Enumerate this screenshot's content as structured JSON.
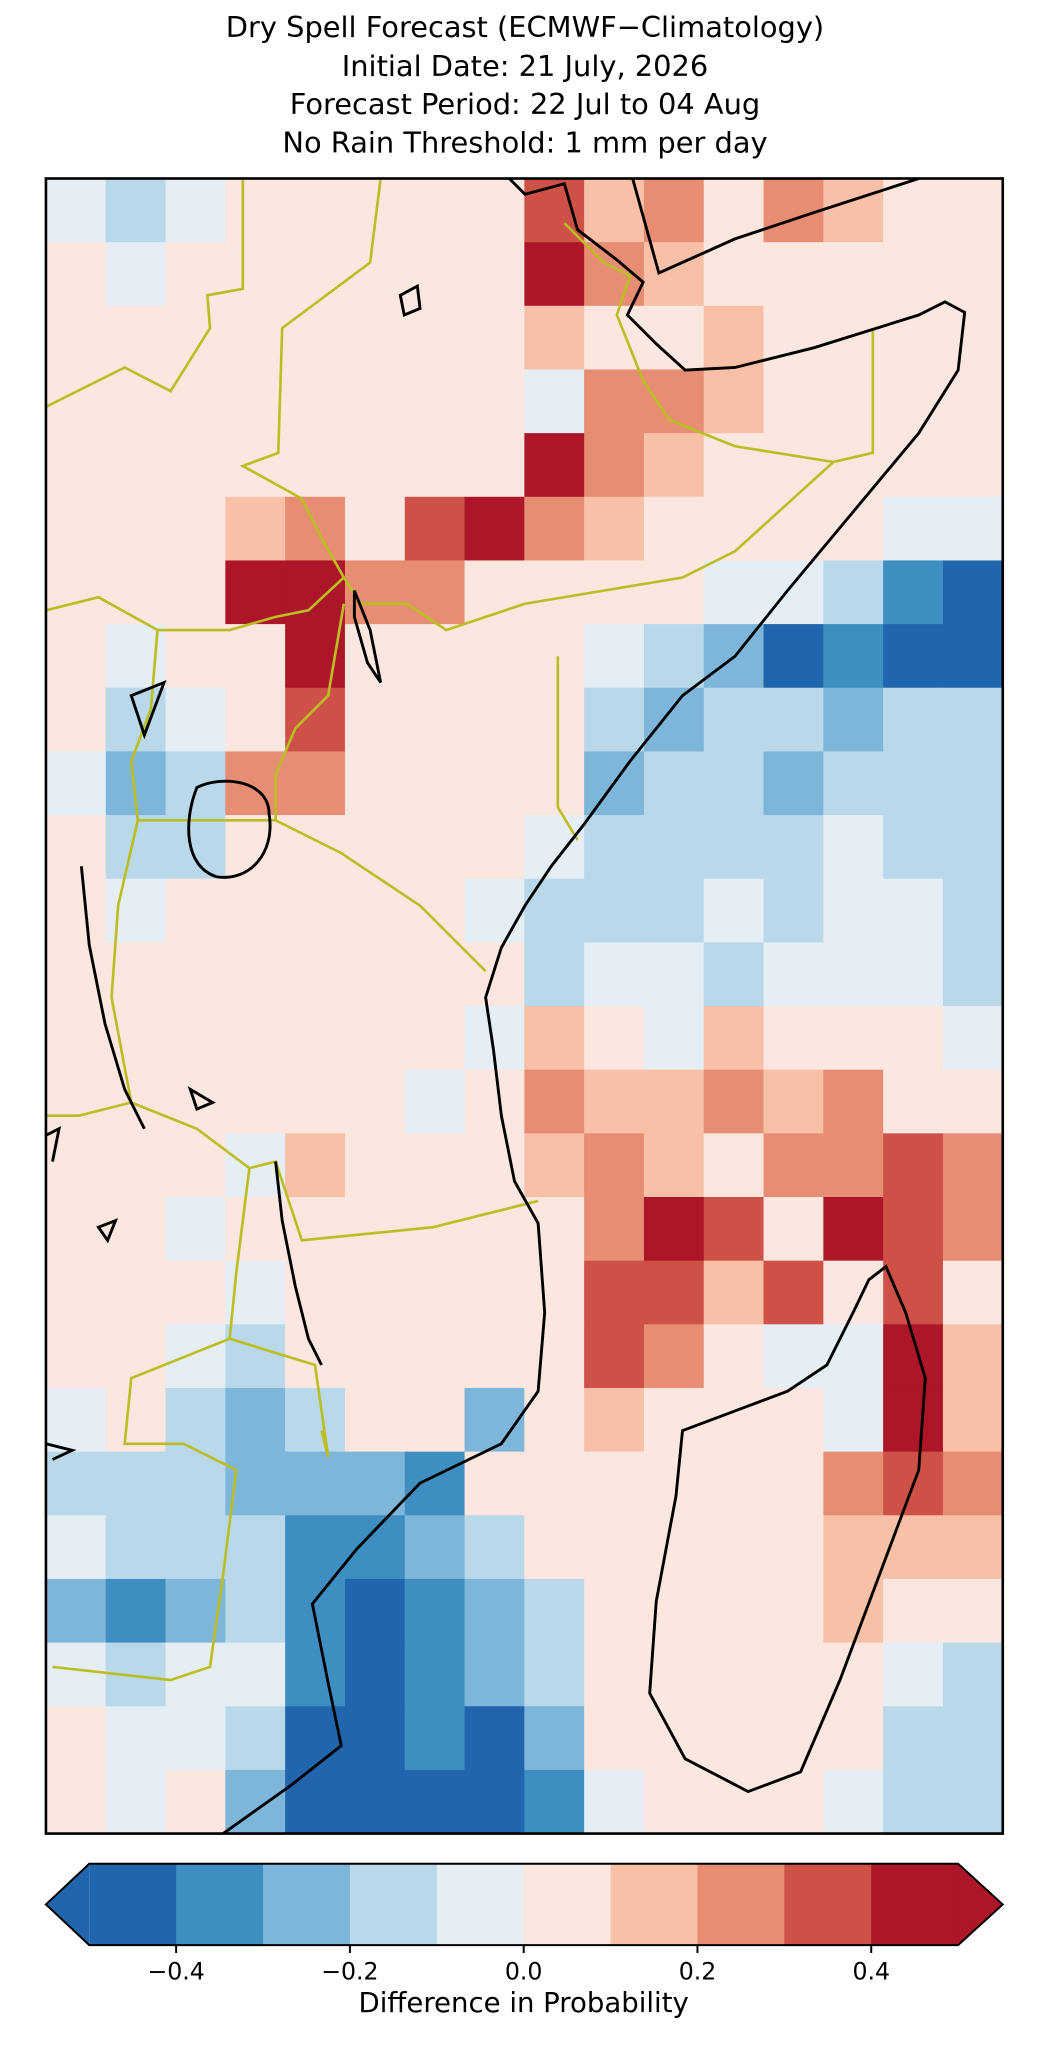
{
  "chart_data": {
    "type": "heatmap",
    "title": "Dry Spell Forecast (ECMWF−Climatology)",
    "subtitle": [
      "Initial Date: 21 July, 2026",
      "Forecast Period: 22 Jul to 04 Aug",
      "No Rain Threshold: 1 mm per day"
    ],
    "values": [
      [
        -0.05,
        -0.15,
        -0.05,
        0.05,
        0.05,
        0.05,
        0.05,
        0.05,
        0.35,
        0.15,
        0.25,
        0.05,
        0.25,
        0.15,
        0.05,
        0.05
      ],
      [
        0.05,
        -0.05,
        0.05,
        0.05,
        0.05,
        0.05,
        0.05,
        0.05,
        0.45,
        0.25,
        0.15,
        0.05,
        0.05,
        0.05,
        0.05,
        0.05
      ],
      [
        0.05,
        0.05,
        0.05,
        0.05,
        0.05,
        0.05,
        0.05,
        0.05,
        0.15,
        0.05,
        0.05,
        0.15,
        0.05,
        0.05,
        0.05,
        0.05
      ],
      [
        0.05,
        0.05,
        0.05,
        0.05,
        0.05,
        0.05,
        0.05,
        0.05,
        -0.05,
        0.25,
        0.25,
        0.15,
        0.05,
        0.05,
        0.05,
        0.05
      ],
      [
        0.05,
        0.05,
        0.05,
        0.05,
        0.05,
        0.05,
        0.05,
        0.05,
        0.45,
        0.25,
        0.15,
        0.05,
        0.05,
        0.05,
        0.05,
        0.05
      ],
      [
        0.05,
        0.05,
        0.05,
        0.15,
        0.25,
        0.05,
        0.35,
        0.45,
        0.25,
        0.15,
        0.05,
        0.05,
        0.05,
        0.05,
        -0.05,
        -0.05
      ],
      [
        0.05,
        0.05,
        0.05,
        0.45,
        0.45,
        0.25,
        0.25,
        0.05,
        0.05,
        0.05,
        0.05,
        -0.05,
        -0.05,
        -0.15,
        -0.35,
        -0.45
      ],
      [
        0.05,
        -0.05,
        0.05,
        0.05,
        0.45,
        0.05,
        0.05,
        0.05,
        0.05,
        -0.05,
        -0.15,
        -0.25,
        -0.45,
        -0.35,
        -0.45,
        -0.45
      ],
      [
        0.05,
        -0.15,
        -0.05,
        0.05,
        0.35,
        0.05,
        0.05,
        0.05,
        0.05,
        -0.15,
        -0.25,
        -0.15,
        -0.15,
        -0.25,
        -0.15,
        -0.15
      ],
      [
        -0.05,
        -0.25,
        -0.15,
        0.25,
        0.25,
        0.05,
        0.05,
        0.05,
        0.05,
        -0.25,
        -0.15,
        -0.15,
        -0.25,
        -0.15,
        -0.15,
        -0.15
      ],
      [
        0.05,
        -0.15,
        -0.15,
        0.05,
        0.05,
        0.05,
        0.05,
        0.05,
        -0.05,
        -0.15,
        -0.15,
        -0.15,
        -0.15,
        -0.05,
        -0.15,
        -0.15
      ],
      [
        0.05,
        -0.05,
        0.05,
        0.05,
        0.05,
        0.05,
        0.05,
        -0.05,
        -0.15,
        -0.15,
        -0.15,
        -0.05,
        -0.15,
        -0.05,
        -0.05,
        -0.15
      ],
      [
        0.05,
        0.05,
        0.05,
        0.05,
        0.05,
        0.05,
        0.05,
        0.05,
        -0.15,
        -0.05,
        -0.05,
        -0.15,
        -0.05,
        -0.05,
        -0.05,
        -0.15
      ],
      [
        0.05,
        0.05,
        0.05,
        0.05,
        0.05,
        0.05,
        0.05,
        -0.05,
        0.15,
        0.05,
        -0.05,
        0.15,
        0.05,
        0.05,
        0.05,
        -0.05
      ],
      [
        0.05,
        0.05,
        0.05,
        0.05,
        0.05,
        0.05,
        -0.05,
        0.05,
        0.25,
        0.15,
        0.15,
        0.25,
        0.15,
        0.25,
        0.05,
        0.05
      ],
      [
        0.05,
        0.05,
        0.05,
        -0.05,
        0.15,
        0.05,
        0.05,
        0.05,
        0.15,
        0.25,
        0.15,
        0.05,
        0.25,
        0.25,
        0.35,
        0.25
      ],
      [
        0.05,
        0.05,
        -0.05,
        0.05,
        0.05,
        0.05,
        0.05,
        0.05,
        0.05,
        0.25,
        0.45,
        0.35,
        0.05,
        0.45,
        0.35,
        0.25
      ],
      [
        0.05,
        0.05,
        0.05,
        -0.05,
        0.05,
        0.05,
        0.05,
        0.05,
        0.05,
        0.35,
        0.35,
        0.15,
        0.35,
        0.05,
        0.35,
        0.05
      ],
      [
        0.05,
        0.05,
        -0.05,
        -0.15,
        0.05,
        0.05,
        0.05,
        0.05,
        0.05,
        0.35,
        0.25,
        0.05,
        -0.05,
        -0.05,
        0.45,
        0.15
      ],
      [
        -0.05,
        0.05,
        -0.15,
        -0.25,
        -0.15,
        0.05,
        0.05,
        -0.25,
        0.05,
        0.15,
        0.05,
        0.05,
        0.05,
        -0.05,
        0.45,
        0.15
      ],
      [
        -0.15,
        -0.15,
        -0.15,
        -0.25,
        -0.25,
        -0.25,
        -0.35,
        0.05,
        0.05,
        0.05,
        0.05,
        0.05,
        0.05,
        0.25,
        0.35,
        0.25
      ],
      [
        -0.05,
        -0.15,
        -0.15,
        -0.15,
        -0.35,
        -0.35,
        -0.25,
        -0.15,
        0.05,
        0.05,
        0.05,
        0.05,
        0.05,
        0.15,
        0.15,
        0.15
      ],
      [
        -0.25,
        -0.35,
        -0.25,
        -0.15,
        -0.35,
        -0.45,
        -0.35,
        -0.25,
        -0.15,
        0.05,
        0.05,
        0.05,
        0.05,
        0.15,
        0.05,
        0.05
      ],
      [
        -0.05,
        -0.15,
        -0.05,
        -0.05,
        -0.35,
        -0.45,
        -0.35,
        -0.25,
        -0.15,
        0.05,
        0.05,
        0.05,
        0.05,
        0.05,
        -0.05,
        -0.15
      ],
      [
        0.05,
        -0.05,
        -0.05,
        -0.15,
        -0.45,
        -0.45,
        -0.35,
        -0.45,
        -0.25,
        0.05,
        0.05,
        0.05,
        0.05,
        0.05,
        -0.15,
        -0.15
      ],
      [
        0.05,
        -0.05,
        0.05,
        -0.25,
        -0.45,
        -0.45,
        -0.45,
        -0.45,
        -0.35,
        -0.05,
        0.05,
        0.05,
        0.05,
        -0.05,
        -0.15,
        -0.15
      ]
    ],
    "colorbar": {
      "label": "Difference in Probability",
      "levels": [
        -0.5,
        -0.4,
        -0.3,
        -0.2,
        -0.1,
        0,
        0.1,
        0.2,
        0.3,
        0.4,
        0.5
      ],
      "colors": [
        "#2166ac",
        "#3f8ec2",
        "#7db6d9",
        "#b9d8ea",
        "#e5eef4",
        "#fbe7df",
        "#f8c0a6",
        "#e68d74",
        "#cd5147",
        "#ad1529"
      ],
      "extend": "both",
      "ticks": [
        {
          "value": -0.4,
          "label": "−0.4"
        },
        {
          "value": -0.2,
          "label": "−0.2"
        },
        {
          "value": 0,
          "label": "0.0"
        },
        0.2,
        0.4
      ]
    }
  }
}
